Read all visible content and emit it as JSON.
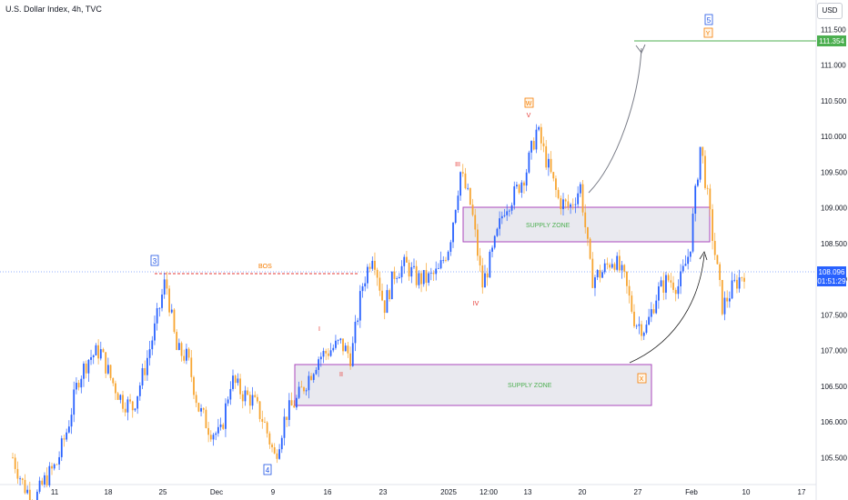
{
  "title": "U.S. Dollar Index, 4h, TVC",
  "currency_button": "USD",
  "price_badge": {
    "value": "108.096",
    "countdown": "01:51:29",
    "color": "#2962ff"
  },
  "target_badge": {
    "value": "111.354",
    "color": "#4caf50"
  },
  "colors": {
    "up": "#2962ff",
    "down": "#f7a531",
    "zone_border": "#ab47bc",
    "zone_fill": "#e9e9ef",
    "zone_text": "#4caf50",
    "bos": "#f57c00",
    "bos_line": "#e53935",
    "wave_red": "#e53935",
    "wave_orange": "#f57c00",
    "wave_blue": "#1e53e5"
  },
  "annotations": {
    "bos": "BOS",
    "supply_zone_upper": "SUPPLY ZONE",
    "supply_zone_lower": "SUPPLY ZONE",
    "wave_3": "3",
    "wave_4": "4",
    "wave_5": "5",
    "wave_I": "I",
    "wave_II": "II",
    "wave_III": "III",
    "wave_IV": "IV",
    "wave_V": "V",
    "wave_W": "W",
    "wave_X": "X",
    "wave_Y": "Y"
  },
  "chart_data": {
    "type": "candlestick",
    "symbol": "U.S. Dollar Index",
    "timeframe": "4h",
    "source": "TVC",
    "y_ticks": [
      "105.500",
      "106.000",
      "106.500",
      "107.000",
      "107.500",
      "108.000",
      "108.500",
      "109.000",
      "109.500",
      "110.000",
      "110.500",
      "111.000",
      "111.500"
    ],
    "x_ticks": [
      "11",
      "18",
      "25",
      "Dec",
      "9",
      "16",
      "23",
      "2025",
      "12:00",
      "13",
      "20",
      "27",
      "Feb",
      "10",
      "17"
    ],
    "ylim": [
      105.2,
      112.0
    ],
    "levels": {
      "target_line": 111.354,
      "bos_level": 108.06,
      "last_price": 108.096
    },
    "zones": [
      {
        "label": "SUPPLY ZONE",
        "y_range": [
          108.53,
          109.0
        ],
        "period": "Jan 3 – Feb 5"
      },
      {
        "label": "SUPPLY ZONE",
        "y_range": [
          106.23,
          106.77
        ],
        "period": "Dec 12 – Jan 28"
      }
    ],
    "key_points": [
      {
        "label": "3",
        "date": "Nov 22",
        "value": 108.07
      },
      {
        "label": "4",
        "date": "Dec 6",
        "value": 105.42
      },
      {
        "label": "I",
        "date": "Dec 16",
        "value": 107.17
      },
      {
        "label": "II",
        "date": "Dec 17",
        "value": 106.9
      },
      {
        "label": "III",
        "date": "Jan 2",
        "value": 109.54
      },
      {
        "label": "IV",
        "date": "Jan 6",
        "value": 107.75
      },
      {
        "label": "V / W",
        "date": "Jan 13",
        "value": 110.17
      },
      {
        "label": "X",
        "date": "Jan 27",
        "value": 106.97
      },
      {
        "label": "Y / 5",
        "date": "projected",
        "value": 111.354
      }
    ],
    "path": [
      [
        "Nov 4",
        105.5
      ],
      [
        "Nov 5",
        105.1
      ],
      [
        "Nov 6",
        104.9
      ],
      [
        "Nov 7",
        105.2
      ],
      [
        "Nov 8",
        105.4
      ],
      [
        "Nov 11",
        105.9
      ],
      [
        "Nov 12",
        106.6
      ],
      [
        "Nov 13",
        106.9
      ],
      [
        "Nov 14",
        107.0
      ],
      [
        "Nov 15",
        106.6
      ],
      [
        "Nov 18",
        106.3
      ],
      [
        "Nov 19",
        106.2
      ],
      [
        "Nov 20",
        106.7
      ],
      [
        "Nov 21",
        107.3
      ],
      [
        "Nov 22",
        108.0
      ],
      [
        "Nov 25",
        107.0
      ],
      [
        "Nov 26",
        106.9
      ],
      [
        "Nov 27",
        106.2
      ],
      [
        "Nov 28",
        105.9
      ],
      [
        "Nov 29",
        105.8
      ],
      [
        "Dec 2",
        106.6
      ],
      [
        "Dec 3",
        106.4
      ],
      [
        "Dec 4",
        106.3
      ],
      [
        "Dec 5",
        106.0
      ],
      [
        "Dec 6",
        105.5
      ],
      [
        "Dec 9",
        106.1
      ],
      [
        "Dec 10",
        106.3
      ],
      [
        "Dec 11",
        106.6
      ],
      [
        "Dec 12",
        106.9
      ],
      [
        "Dec 13",
        107.0
      ],
      [
        "Dec 16",
        107.1
      ],
      [
        "Dec 17",
        106.9
      ],
      [
        "Dec 18",
        107.9
      ],
      [
        "Dec 19",
        108.4
      ],
      [
        "Dec 20",
        107.6
      ],
      [
        "Dec 23",
        108.1
      ],
      [
        "Dec 24",
        108.2
      ],
      [
        "Dec 26",
        108.0
      ],
      [
        "Dec 27",
        108.0
      ],
      [
        "Dec 30",
        108.1
      ],
      [
        "Dec 31",
        108.5
      ],
      [
        "Jan 2",
        109.5
      ],
      [
        "Jan 3",
        109.0
      ],
      [
        "Jan 6",
        107.9
      ],
      [
        "Jan 7",
        108.4
      ],
      [
        "Jan 8",
        109.0
      ],
      [
        "Jan 9",
        109.2
      ],
      [
        "Jan 10",
        109.5
      ],
      [
        "Jan 13",
        110.1
      ],
      [
        "Jan 14",
        109.6
      ],
      [
        "Jan 15",
        109.1
      ],
      [
        "Jan 16",
        109.0
      ],
      [
        "Jan 17",
        109.3
      ],
      [
        "Jan 20",
        108.0
      ],
      [
        "Jan 21",
        108.1
      ],
      [
        "Jan 22",
        108.3
      ],
      [
        "Jan 23",
        108.0
      ],
      [
        "Jan 24",
        107.4
      ],
      [
        "Jan 27",
        107.3
      ],
      [
        "Jan 28",
        107.8
      ],
      [
        "Jan 29",
        108.0
      ],
      [
        "Jan 30",
        107.9
      ],
      [
        "Jan 31",
        108.4
      ],
      [
        "Feb 3",
        109.9
      ],
      [
        "Feb 4",
        108.7
      ],
      [
        "Feb 5",
        107.6
      ],
      [
        "Feb 6",
        107.9
      ],
      [
        "Feb 7",
        108.1
      ]
    ]
  }
}
